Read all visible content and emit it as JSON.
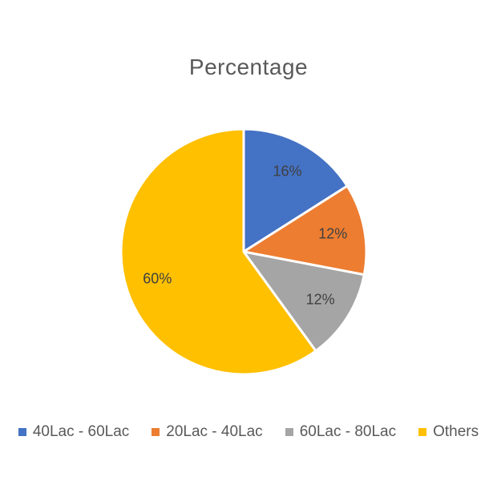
{
  "chart_data": {
    "type": "pie",
    "title": "Percentage",
    "categories": [
      "40Lac - 60Lac",
      "20Lac - 40Lac",
      "60Lac - 80Lac",
      "Others"
    ],
    "values": [
      16,
      12,
      12,
      60
    ],
    "data_labels": [
      "16%",
      "12%",
      "12%",
      "60%"
    ],
    "colors": [
      "#4472C4",
      "#ED7D31",
      "#A5A5A5",
      "#FFC000"
    ],
    "legend_position": "bottom"
  }
}
